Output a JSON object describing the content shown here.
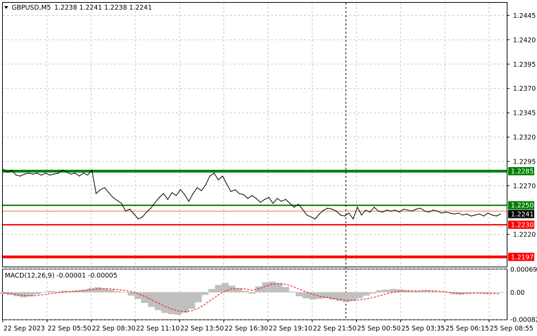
{
  "header": {
    "symbol": "GBPUSD,M5",
    "ohlc": "1.2238 1.2241 1.2238 1.2241",
    "dropdown_icon": "triangle-down-icon"
  },
  "chart_data": [
    {
      "type": "line",
      "title": "GBPUSD,M5 1.2238 1.2241 1.2238 1.2241",
      "ylim": [
        1.2187,
        1.2458
      ],
      "y_ticks": [
        "1.2445",
        "1.2420",
        "1.2395",
        "1.2370",
        "1.2345",
        "1.2320",
        "1.2295",
        "1.2270",
        "1.2220"
      ],
      "x_ticks": [
        "22 Sep 2023",
        "22 Sep 05:50",
        "22 Sep 08:30",
        "22 Sep 11:10",
        "22 Sep 13:50",
        "22 Sep 16:30",
        "22 Sep 19:10",
        "22 Sep 21:50",
        "25 Sep 00:50",
        "25 Sep 03:35",
        "25 Sep 06:15",
        "25 Sep 08:55"
      ],
      "grid": true,
      "series": [
        {
          "values": [
            1.2287,
            1.2284,
            1.2286,
            1.2281,
            1.228,
            1.2282,
            1.2283,
            1.2282,
            1.2283,
            1.2281,
            1.2283,
            1.2281,
            1.2282,
            1.2283,
            1.2286,
            1.2284,
            1.2282,
            1.2283,
            1.228,
            1.2283,
            1.2281,
            1.2286,
            1.2262,
            1.2266,
            1.2268,
            1.2263,
            1.2258,
            1.2255,
            1.2252,
            1.2244,
            1.2246,
            1.2241,
            1.2236,
            1.2238,
            1.2243,
            1.2247,
            1.2253,
            1.2258,
            1.2262,
            1.2256,
            1.2263,
            1.226,
            1.2266,
            1.2261,
            1.2254,
            1.2262,
            1.2268,
            1.2265,
            1.2271,
            1.228,
            1.2283,
            1.2276,
            1.228,
            1.2272,
            1.2264,
            1.2266,
            1.2262,
            1.2261,
            1.2257,
            1.226,
            1.2257,
            1.2253,
            1.2256,
            1.2258,
            1.2252,
            1.2257,
            1.2254,
            1.2256,
            1.2252,
            1.2248,
            1.2251,
            1.2246,
            1.224,
            1.2238,
            1.2236,
            1.2241,
            1.2245,
            1.2247,
            1.2246,
            1.2244,
            1.224,
            1.2239,
            1.2242,
            1.2236,
            1.2248,
            1.224,
            1.2245,
            1.2243,
            1.2248,
            1.2244,
            1.2243,
            1.2245,
            1.2244,
            1.2245,
            1.2243,
            1.2246,
            1.2245,
            1.2244,
            1.2246,
            1.2247,
            1.2244,
            1.2243,
            1.2245,
            1.2244,
            1.2242,
            1.2243,
            1.2242,
            1.2241,
            1.2242,
            1.224,
            1.2241,
            1.2239,
            1.224,
            1.2241,
            1.2239,
            1.2242,
            1.224,
            1.2239,
            1.2241
          ],
          "color": "#000000"
        }
      ],
      "levels": [
        {
          "value": 1.2285,
          "label": "1.2285",
          "color": "#008000",
          "style": "thick"
        },
        {
          "value": 1.225,
          "label": "1.2250",
          "color": "#008000",
          "style": "thin"
        },
        {
          "value": 1.2244,
          "label": "",
          "color": "#ff6a3d",
          "style": "hairline"
        },
        {
          "value": 1.223,
          "label": "1.2230",
          "color": "#ff0000",
          "style": "thin"
        },
        {
          "value": 1.2197,
          "label": "1.2197",
          "color": "#ff0000",
          "style": "thick"
        }
      ],
      "current_price": {
        "value": 1.2241,
        "label": "1.2241",
        "color": "#000000"
      },
      "crosshair_x_label": "22 Sep 21:50"
    },
    {
      "type": "bar",
      "title": "MACD(12,26,9) -0.00001 -0.00005",
      "ylim": [
        -0.00082,
        0.00069
      ],
      "y_ticks": [
        "0.00069",
        "0.00",
        "-0.00082"
      ],
      "series": [
        {
          "name": "MACD",
          "color": "#c0c0c0",
          "values": [
            -5e-05,
            -8e-05,
            -0.00012,
            -0.00015,
            -0.00012,
            -6e-05,
            1e-05,
            4e-05,
            2e-05,
            5e-05,
            4e-05,
            6e-05,
            8e-05,
            0.00012,
            0.00015,
            0.00012,
            8e-05,
            3e-05,
            1e-05,
            -0.0001,
            -0.0002,
            -0.00032,
            -0.00044,
            -0.00054,
            -0.00062,
            -0.00066,
            -0.00068,
            -0.00062,
            -0.0005,
            -0.0003,
            -8e-05,
            0.0001,
            0.00022,
            0.00028,
            0.0002,
            0.00012,
            4e-05,
            -4e-05,
            0.00018,
            0.0003,
            0.00032,
            0.00028,
            0.00016,
            2e-05,
            -0.00012,
            -0.00018,
            -0.00022,
            -0.0002,
            -0.00018,
            -0.00022,
            -0.00026,
            -0.0003,
            -0.00026,
            -0.00018,
            -0.0001,
            -4e-05,
            6e-05,
            8e-05,
            0.0001,
            9e-05,
            6e-05,
            4e-05,
            4e-05,
            6e-05,
            4e-05,
            2e-05,
            -2e-05,
            -6e-05,
            -7e-05,
            -4e-05,
            -2e-05,
            -3e-05,
            -4e-05,
            -2e-05,
            -1e-05
          ]
        },
        {
          "name": "Signal",
          "color": "#ff0000",
          "values": [
            -2e-05,
            -4e-05,
            -7e-05,
            -0.0001,
            -0.00011,
            -0.0001,
            -7e-05,
            -4e-05,
            -2e-05,
            0.0,
            2e-05,
            3e-05,
            5e-05,
            8e-05,
            0.0001,
            0.00011,
            0.0001,
            8e-05,
            6e-05,
            2e-05,
            -4e-05,
            -0.00012,
            -0.00022,
            -0.00032,
            -0.00042,
            -0.0005,
            -0.00056,
            -0.00058,
            -0.00056,
            -0.00048,
            -0.00036,
            -0.00022,
            -8e-05,
            4e-05,
            0.0001,
            0.00011,
            0.0001,
            6e-05,
            0.0001,
            0.00018,
            0.00024,
            0.00026,
            0.00024,
            0.00018,
            0.0001,
            2e-05,
            -6e-05,
            -0.00012,
            -0.00015,
            -0.00018,
            -0.00021,
            -0.00024,
            -0.00025,
            -0.00023,
            -0.0002,
            -0.00016,
            -0.0001,
            -5e-05,
            0.0,
            3e-05,
            4e-05,
            4e-05,
            4e-05,
            5e-05,
            4e-05,
            3e-05,
            1e-05,
            -2e-05,
            -4e-05,
            -4e-05,
            -3e-05,
            -3e-05,
            -4e-05,
            -4e-05,
            -5e-05
          ]
        }
      ]
    }
  ]
}
